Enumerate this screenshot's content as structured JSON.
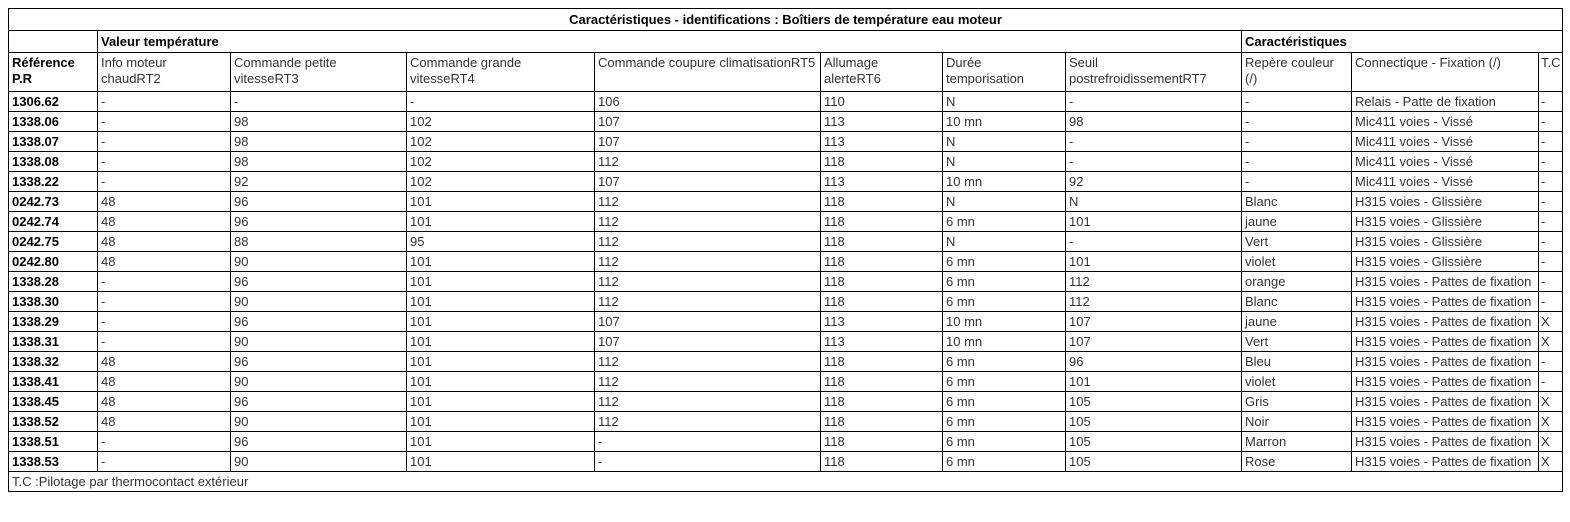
{
  "title": "Caractéristiques - identifications : Boîtiers de température eau moteur",
  "footnote": "T.C :Pilotage par thermocontact extérieur",
  "colors": {
    "background": "#ffffff",
    "border": "#000000",
    "text": "#333333",
    "bold_text": "#000000"
  },
  "table": {
    "group_headers": {
      "valeur_temperature": "Valeur température",
      "caracteristiques": "Caractéristiques"
    },
    "column_keys": [
      "reference",
      "info-moteur-chaud-rt2",
      "commande-petite-vitesse-rt3",
      "commande-grande-vitesse-rt4",
      "commande-coupure-climatisation-rt5",
      "allumage-alerte-rt6",
      "duree-temporisation",
      "seuil-postrefroidissement-rt7",
      "repere-couleur",
      "connectique-fixation",
      "tc"
    ],
    "columns": [
      {
        "key": "reference",
        "label": "Référence\nP.R"
      },
      {
        "key": "info-moteur-chaud-rt2",
        "label": "Info moteur\nchaudRT2"
      },
      {
        "key": "commande-petite-vitesse-rt3",
        "label": "Commande petite\nvitesseRT3"
      },
      {
        "key": "commande-grande-vitesse-rt4",
        "label": "Commande grande\nvitesseRT4"
      },
      {
        "key": "commande-coupure-climatisation-rt5",
        "label": "Commande coupure climatisationRT5"
      },
      {
        "key": "allumage-alerte-rt6",
        "label": "Allumage\nalerteRT6"
      },
      {
        "key": "duree-temporisation",
        "label": "Durée\ntemporisation"
      },
      {
        "key": "seuil-postrefroidissement-rt7",
        "label": "Seuil\npostrefroidissementRT7"
      },
      {
        "key": "repere-couleur",
        "label": "Repère couleur (/)"
      },
      {
        "key": "connectique-fixation",
        "label": "Connectique - Fixation (/)"
      },
      {
        "key": "tc",
        "label": "T.C"
      }
    ],
    "rows": [
      [
        "1306.62",
        "-",
        "-",
        "-",
        "106",
        "110",
        "N",
        "-",
        "-",
        "Relais - Patte de fixation",
        "-"
      ],
      [
        "1338.06",
        "-",
        "98",
        "102",
        "107",
        "113",
        "10 mn",
        "98",
        "-",
        "Mic411 voies - Vissé",
        "-"
      ],
      [
        "1338.07",
        "-",
        "98",
        "102",
        "107",
        "113",
        "N",
        "-",
        "-",
        "Mic411 voies - Vissé",
        "-"
      ],
      [
        "1338.08",
        "-",
        "98",
        "102",
        "112",
        "118",
        "N",
        "-",
        "-",
        "Mic411 voies - Vissé",
        "-"
      ],
      [
        "1338.22",
        "-",
        "92",
        "102",
        "107",
        "113",
        "10 mn",
        "92",
        "-",
        "Mic411 voies - Vissé",
        "-"
      ],
      [
        "0242.73",
        "48",
        "96",
        "101",
        "112",
        "118",
        "N",
        "N",
        "Blanc",
        "H315 voies - Glissière",
        "-"
      ],
      [
        "0242.74",
        "48",
        "96",
        "101",
        "112",
        "118",
        "6 mn",
        "101",
        "jaune",
        "H315 voies - Glissière",
        "-"
      ],
      [
        "0242.75",
        "48",
        "88",
        "95",
        "112",
        "118",
        "N",
        "-",
        "Vert",
        "H315 voies - Glissière",
        "-"
      ],
      [
        "0242.80",
        "48",
        "90",
        "101",
        "112",
        "118",
        "6 mn",
        "101",
        "violet",
        "H315 voies - Glissière",
        "-"
      ],
      [
        "1338.28",
        "-",
        "96",
        "101",
        "112",
        "118",
        "6 mn",
        "112",
        "orange",
        "H315 voies - Pattes de fixation",
        "-"
      ],
      [
        "1338.30",
        "-",
        "90",
        "101",
        "112",
        "118",
        "6 mn",
        "112",
        "Blanc",
        "H315 voies - Pattes de fixation",
        "-"
      ],
      [
        "1338.29",
        "-",
        "96",
        "101",
        "107",
        "113",
        "10 mn",
        "107",
        "jaune",
        "H315 voies - Pattes de fixation",
        "X"
      ],
      [
        "1338.31",
        "-",
        "90",
        "101",
        "107",
        "113",
        "10 mn",
        "107",
        "Vert",
        "H315 voies - Pattes de fixation",
        "X"
      ],
      [
        "1338.32",
        "48",
        "96",
        "101",
        "112",
        "118",
        "6 mn",
        "96",
        "Bleu",
        "H315 voies - Pattes de fixation",
        "-"
      ],
      [
        "1338.41",
        "48",
        "90",
        "101",
        "112",
        "118",
        "6 mn",
        "101",
        "violet",
        "H315 voies - Pattes de fixation",
        "-"
      ],
      [
        "1338.45",
        "48",
        "96",
        "101",
        "112",
        "118",
        "6 mn",
        "105",
        "Gris",
        "H315 voies - Pattes de fixation",
        "X"
      ],
      [
        "1338.52",
        "48",
        "90",
        "101",
        "112",
        "118",
        "6 mn",
        "105",
        "Noir",
        "H315 voies - Pattes de fixation",
        "X"
      ],
      [
        "1338.51",
        "-",
        "96",
        "101",
        "-",
        "118",
        "6 mn",
        "105",
        "Marron",
        "H315 voies - Pattes de fixation",
        "X"
      ],
      [
        "1338.53",
        "-",
        "90",
        "101",
        "-",
        "118",
        "6 mn",
        "105",
        "Rose",
        "H315 voies - Pattes de fixation",
        "X"
      ]
    ]
  }
}
